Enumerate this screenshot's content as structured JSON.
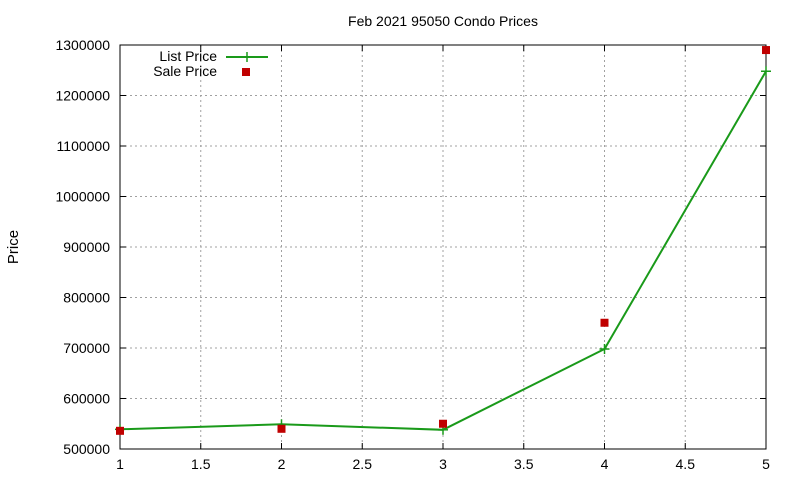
{
  "colors": {
    "list": "#1a9a1a",
    "sale": "#c00000",
    "grid": "#a0a0a0",
    "frame": "#000000"
  },
  "chart_data": {
    "type": "line",
    "title": "Feb 2021 95050 Condo Prices",
    "xlabel": "",
    "ylabel": "Price",
    "xlim": [
      1,
      5
    ],
    "ylim": [
      500000,
      1300000
    ],
    "xticks": [
      1,
      1.5,
      2,
      2.5,
      3,
      3.5,
      4,
      4.5,
      5
    ],
    "xtick_labels": [
      "1",
      "1.5",
      "2",
      "2.5",
      "3",
      "3.5",
      "4",
      "4.5",
      "5"
    ],
    "yticks": [
      500000,
      600000,
      700000,
      800000,
      900000,
      1000000,
      1100000,
      1200000,
      1300000
    ],
    "ytick_labels": [
      "500000",
      "600000",
      "700000",
      "800000",
      "900000",
      "1000000",
      "1100000",
      "1200000",
      "1300000"
    ],
    "grid": true,
    "legend_position": "top-left",
    "series": [
      {
        "name": "List Price",
        "style": "line-with-plus-markers",
        "color": "#1a9a1a",
        "x": [
          1,
          2,
          3,
          4,
          5
        ],
        "y": [
          539000,
          549000,
          538000,
          698000,
          1248000
        ]
      },
      {
        "name": "Sale Price",
        "style": "square-points",
        "color": "#c00000",
        "x": [
          1,
          2,
          3,
          4,
          5
        ],
        "y": [
          536000,
          540000,
          550000,
          750000,
          1290000
        ]
      }
    ]
  }
}
